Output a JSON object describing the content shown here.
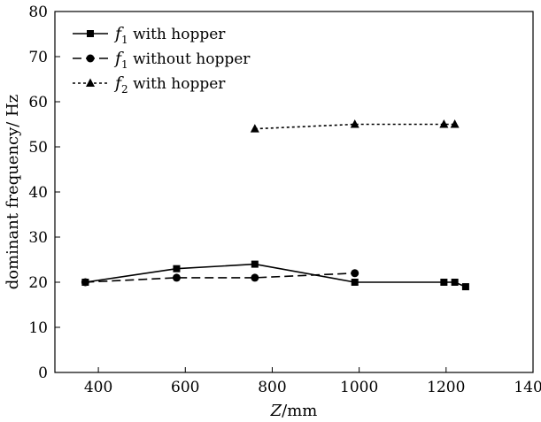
{
  "chart_data": {
    "type": "line",
    "title": "",
    "xlabel": {
      "var": "Z",
      "unit": "/mm"
    },
    "ylabel": "dominant frequency/ Hz",
    "xlim": [
      300,
      1400
    ],
    "ylim": [
      0,
      80
    ],
    "xticks": [
      400,
      600,
      800,
      1000,
      1200,
      1400
    ],
    "yticks": [
      0,
      10,
      20,
      30,
      40,
      50,
      60,
      70,
      80
    ],
    "grid": false,
    "legend_position": "top-left",
    "series": [
      {
        "name": "f1 with hopper",
        "name_var": "f",
        "name_sub": "1",
        "name_rest": " with hopper",
        "line_style": "solid",
        "marker": "square",
        "color": "#000000",
        "x": [
          370,
          580,
          760,
          990,
          1195,
          1220,
          1245
        ],
        "y": [
          20,
          23,
          24,
          20,
          20,
          20,
          19
        ]
      },
      {
        "name": "f1 without hopper",
        "name_var": "f",
        "name_sub": "1",
        "name_rest": " without hopper",
        "line_style": "dashed",
        "marker": "circle",
        "color": "#000000",
        "x": [
          370,
          580,
          760,
          990
        ],
        "y": [
          20,
          21,
          21,
          22
        ]
      },
      {
        "name": "f2 with hopper",
        "name_var": "f",
        "name_sub": "2",
        "name_rest": " with hopper",
        "line_style": "dotted",
        "marker": "triangle",
        "color": "#000000",
        "x": [
          760,
          990,
          1195,
          1220
        ],
        "y": [
          54,
          55,
          55,
          55
        ]
      }
    ]
  }
}
